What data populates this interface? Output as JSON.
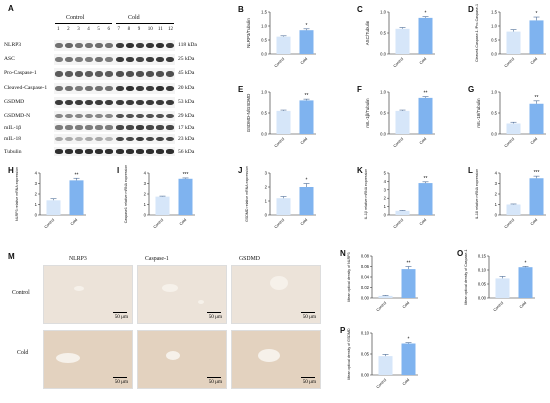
{
  "panels": {
    "A": {
      "label": "A",
      "group_control": "Control",
      "group_cold": "Cold",
      "lanes": [
        "1",
        "2",
        "3",
        "4",
        "5",
        "6",
        "7",
        "8",
        "9",
        "10",
        "11",
        "12"
      ],
      "blots": [
        {
          "name": "NLRP3",
          "kda": "118 kDa"
        },
        {
          "name": "ASC",
          "kda": "25 kDa"
        },
        {
          "name": "Pro-Caspase-1",
          "kda": "45 kDa"
        },
        {
          "name": "Cleaved-Caspase-1",
          "kda": "20 kDa"
        },
        {
          "name": "GSDMD",
          "kda": "53 kDa"
        },
        {
          "name": "GSDMD-N",
          "kda": "29 kDa"
        },
        {
          "name": "mIL-1β",
          "kda": "17 kDa"
        },
        {
          "name": "mIL-18",
          "kda": "23 kDa"
        },
        {
          "name": "Tubulin",
          "kda": "56 kDa"
        }
      ]
    },
    "M": {
      "label": "M",
      "columns": [
        "NLRP3",
        "Caspase-1",
        "GSDMD"
      ],
      "rows": [
        "Control",
        "Cold"
      ],
      "scale_bar": "50 μm"
    }
  },
  "colors": {
    "control": "#d6e6f9",
    "cold": "#7fb3ef",
    "error": "#4a6a95"
  },
  "chart_data": [
    {
      "panel": "B",
      "type": "bar",
      "categories": [
        "Control",
        "Cold"
      ],
      "values": [
        0.62,
        0.85
      ],
      "errors": [
        0.03,
        0.05
      ],
      "ylabel": "NLRP3/Tubulin",
      "ylim": [
        0,
        1.5
      ],
      "yticks": [
        "0.0",
        "0.5",
        "1.0",
        "1.5"
      ],
      "sig": "*"
    },
    {
      "panel": "C",
      "type": "bar",
      "categories": [
        "Control",
        "Cold"
      ],
      "values": [
        0.6,
        0.86
      ],
      "errors": [
        0.03,
        0.03
      ],
      "ylabel": "ASC/Tubulin",
      "ylim": [
        0,
        1.0
      ],
      "yticks": [
        "0.0",
        "0.5",
        "1.0"
      ],
      "sig": "*"
    },
    {
      "panel": "D",
      "type": "bar",
      "categories": [
        "Control",
        "Cold"
      ],
      "values": [
        0.8,
        1.2
      ],
      "errors": [
        0.07,
        0.12
      ],
      "ylabel": "Cleaved-Caspase-1 /Pro-Caspase-1",
      "ylim": [
        0,
        1.5
      ],
      "yticks": [
        "0.0",
        "0.5",
        "1.0",
        "1.5"
      ],
      "sig": "*"
    },
    {
      "panel": "E",
      "type": "bar",
      "categories": [
        "Control",
        "Cold"
      ],
      "values": [
        0.55,
        0.8
      ],
      "errors": [
        0.02,
        0.03
      ],
      "ylabel": "GSDMD-N/GSDMD",
      "ylim": [
        0,
        1.0
      ],
      "yticks": [
        "0.0",
        "0.5",
        "1.0"
      ],
      "sig": "**"
    },
    {
      "panel": "F",
      "type": "bar",
      "categories": [
        "Control",
        "Cold"
      ],
      "values": [
        0.55,
        0.86
      ],
      "errors": [
        0.02,
        0.03
      ],
      "ylabel": "mIL-1β/Tubulin",
      "ylim": [
        0,
        1.0
      ],
      "yticks": [
        "0.0",
        "0.5",
        "1.0"
      ],
      "sig": "**"
    },
    {
      "panel": "G",
      "type": "bar",
      "categories": [
        "Control",
        "Cold"
      ],
      "values": [
        0.25,
        0.72
      ],
      "errors": [
        0.03,
        0.07
      ],
      "ylabel": "mIL-18/Tubulin",
      "ylim": [
        0,
        1.0
      ],
      "yticks": [
        "0.0",
        "0.5",
        "1.0"
      ],
      "sig": "**"
    },
    {
      "panel": "H",
      "type": "bar",
      "categories": [
        "Control",
        "Cold"
      ],
      "values": [
        1.4,
        3.3
      ],
      "errors": [
        0.15,
        0.2
      ],
      "ylabel": "NLRP3 relative mRNA expression",
      "ylim": [
        0,
        4
      ],
      "yticks": [
        "0",
        "1",
        "2",
        "3",
        "4"
      ],
      "sig": "**"
    },
    {
      "panel": "I",
      "type": "bar",
      "categories": [
        "Control",
        "Cold"
      ],
      "values": [
        1.75,
        3.45
      ],
      "errors": [
        0.05,
        0.08
      ],
      "ylabel": "Caspase1 relative mRNA expression",
      "ylim": [
        0,
        4
      ],
      "yticks": [
        "0",
        "1",
        "2",
        "3",
        "4"
      ],
      "sig": "***"
    },
    {
      "panel": "J",
      "type": "bar",
      "categories": [
        "Control",
        "Cold"
      ],
      "values": [
        1.2,
        2.0
      ],
      "errors": [
        0.12,
        0.25
      ],
      "ylabel": "GSDMD relative mRNA expression",
      "ylim": [
        0,
        3
      ],
      "yticks": [
        "0",
        "1",
        "2",
        "3"
      ],
      "sig": "*"
    },
    {
      "panel": "K",
      "type": "bar",
      "categories": [
        "Control",
        "Cold"
      ],
      "values": [
        0.5,
        3.8
      ],
      "errors": [
        0.05,
        0.15
      ],
      "ylabel": "IL-1β relative mRNA expression",
      "ylim": [
        0,
        5
      ],
      "yticks": [
        "0",
        "1",
        "2",
        "3",
        "4",
        "5"
      ],
      "sig": "**"
    },
    {
      "panel": "L",
      "type": "bar",
      "categories": [
        "Control",
        "Cold"
      ],
      "values": [
        1.0,
        3.5
      ],
      "errors": [
        0.05,
        0.2
      ],
      "ylabel": "IL-18 relative mRNA expression",
      "ylim": [
        0,
        4
      ],
      "yticks": [
        "0",
        "1",
        "2",
        "3",
        "4"
      ],
      "sig": "***"
    },
    {
      "panel": "N",
      "type": "bar",
      "categories": [
        "Control",
        "Cold"
      ],
      "values": [
        0.004,
        0.055
      ],
      "errors": [
        0.001,
        0.005
      ],
      "ylabel": "Mean optical density of NLRP3",
      "ylim": [
        0,
        0.08
      ],
      "yticks": [
        "0.00",
        "0.02",
        "0.04",
        "0.06",
        "0.08"
      ],
      "sig": "**"
    },
    {
      "panel": "O",
      "type": "bar",
      "categories": [
        "Control",
        "Cold"
      ],
      "values": [
        0.07,
        0.11
      ],
      "errors": [
        0.007,
        0.003
      ],
      "ylabel": "Mean optical density of Caspase-1",
      "ylim": [
        0,
        0.15
      ],
      "yticks": [
        "0.00",
        "0.05",
        "0.10",
        "0.15"
      ],
      "sig": "*"
    },
    {
      "panel": "P",
      "type": "bar",
      "categories": [
        "Control",
        "Cold"
      ],
      "values": [
        0.045,
        0.075
      ],
      "errors": [
        0.004,
        0.002
      ],
      "ylabel": "Mean optical density of GSDMD",
      "ylim": [
        0,
        0.1
      ],
      "yticks": [
        "0.00",
        "0.05",
        "0.10"
      ],
      "sig": "*"
    }
  ]
}
